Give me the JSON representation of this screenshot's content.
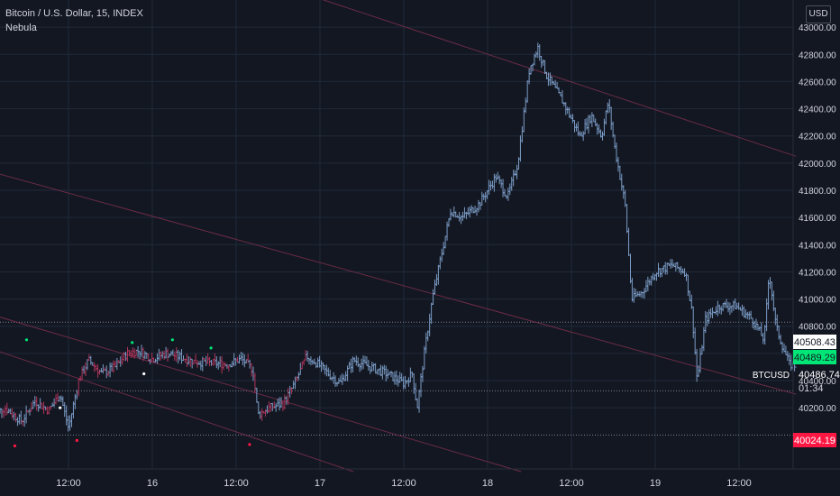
{
  "header": {
    "symbol_title": "Bitcoin / U.S. Dollar, 15, INDEX",
    "indicator_name": "Nebula",
    "currency_button": "USD"
  },
  "price_labels": {
    "last_price": "40508.43",
    "green_price": "40489.29",
    "btcusd_label": "BTCUSD",
    "btcusd_price": "40486.74",
    "countdown": "01:34",
    "red_price": "40024.19"
  },
  "colors": {
    "background": "#131722",
    "grid": "#1f2a3a",
    "price_bars": "#7b9cc6",
    "channel_line": "#7a2f4a",
    "last_price_bg": "#ffffff",
    "green_label_bg": "#00e676",
    "red_label_bg": "#ff1744",
    "axis_text": "#d1d4dc"
  },
  "chart_data": {
    "type": "ohlc",
    "ylim": [
      39750,
      43200
    ],
    "y_ticks": [
      40200,
      40400,
      40600,
      40800,
      41000,
      41200,
      41400,
      41600,
      41800,
      42000,
      42200,
      42400,
      42600,
      42800,
      43000
    ],
    "y_tick_labels": [
      "40200.00",
      "40400.00",
      "40600.00",
      "40800.00",
      "41000.00",
      "41200.00",
      "41400.00",
      "41600.00",
      "41800.00",
      "42000.00",
      "42200.00",
      "42400.00",
      "42600.00",
      "42800.00",
      "43000.00"
    ],
    "x_ticks": [
      "12:00",
      "16",
      "12:00",
      "17",
      "12:00",
      "18",
      "12:00",
      "19",
      "12:00"
    ],
    "x_tick_offsets_days": [
      0.5,
      1.0,
      1.5,
      2.0,
      2.5,
      3.0,
      3.5,
      4.0,
      4.5
    ],
    "day_span": [
      0.05,
      4.84
    ],
    "price_path": [
      [
        0.05,
        40150
      ],
      [
        0.12,
        40200
      ],
      [
        0.22,
        40100
      ],
      [
        0.3,
        40250
      ],
      [
        0.38,
        40180
      ],
      [
        0.45,
        40300
      ],
      [
        0.5,
        40050
      ],
      [
        0.56,
        40400
      ],
      [
        0.62,
        40550
      ],
      [
        0.7,
        40450
      ],
      [
        0.78,
        40500
      ],
      [
        0.85,
        40600
      ],
      [
        0.92,
        40620
      ],
      [
        1.0,
        40560
      ],
      [
        1.08,
        40600
      ],
      [
        1.15,
        40580
      ],
      [
        1.25,
        40540
      ],
      [
        1.35,
        40530
      ],
      [
        1.45,
        40520
      ],
      [
        1.53,
        40560
      ],
      [
        1.6,
        40480
      ],
      [
        1.63,
        40150
      ],
      [
        1.7,
        40200
      ],
      [
        1.78,
        40230
      ],
      [
        1.85,
        40380
      ],
      [
        1.92,
        40580
      ],
      [
        1.98,
        40530
      ],
      [
        2.05,
        40450
      ],
      [
        2.12,
        40380
      ],
      [
        2.2,
        40550
      ],
      [
        2.3,
        40500
      ],
      [
        2.4,
        40450
      ],
      [
        2.5,
        40380
      ],
      [
        2.55,
        40450
      ],
      [
        2.58,
        40200
      ],
      [
        2.62,
        40580
      ],
      [
        2.67,
        41000
      ],
      [
        2.72,
        41300
      ],
      [
        2.78,
        41650
      ],
      [
        2.85,
        41600
      ],
      [
        2.95,
        41700
      ],
      [
        3.05,
        41900
      ],
      [
        3.12,
        41750
      ],
      [
        3.18,
        42000
      ],
      [
        3.25,
        42700
      ],
      [
        3.3,
        42850
      ],
      [
        3.35,
        42650
      ],
      [
        3.45,
        42450
      ],
      [
        3.55,
        42200
      ],
      [
        3.62,
        42350
      ],
      [
        3.68,
        42200
      ],
      [
        3.72,
        42450
      ],
      [
        3.76,
        42100
      ],
      [
        3.82,
        41700
      ],
      [
        3.86,
        41000
      ],
      [
        3.92,
        41050
      ],
      [
        4.0,
        41200
      ],
      [
        4.1,
        41250
      ],
      [
        4.18,
        41200
      ],
      [
        4.22,
        40900
      ],
      [
        4.25,
        40400
      ],
      [
        4.3,
        40850
      ],
      [
        4.38,
        40950
      ],
      [
        4.48,
        40950
      ],
      [
        4.58,
        40850
      ],
      [
        4.65,
        40700
      ],
      [
        4.68,
        41200
      ],
      [
        4.72,
        40800
      ],
      [
        4.76,
        40650
      ],
      [
        4.8,
        40520
      ],
      [
        4.84,
        40508
      ]
    ],
    "channel_lines": [
      {
        "from": [
          0.0,
          41950
        ],
        "to": [
          4.84,
          40300
        ]
      },
      {
        "from": [
          0.0,
          40900
        ],
        "to": [
          3.2,
          39730
        ]
      },
      {
        "from": [
          0.0,
          40650
        ],
        "to": [
          2.2,
          39730
        ]
      },
      {
        "from": [
          1.9,
          43250
        ],
        "to": [
          4.84,
          42050
        ]
      }
    ],
    "horizontal_levels": [
      40830,
      40325,
      40000
    ],
    "signal_dots": [
      {
        "x": 0.08,
        "y": 40720,
        "color": "#00e676"
      },
      {
        "x": 0.25,
        "y": 40700,
        "color": "#00e676"
      },
      {
        "x": 0.45,
        "y": 40200,
        "color": "#ffffff"
      },
      {
        "x": 0.88,
        "y": 40680,
        "color": "#00e676"
      },
      {
        "x": 1.12,
        "y": 40700,
        "color": "#00e676"
      },
      {
        "x": 0.18,
        "y": 39920,
        "color": "#ff1744"
      },
      {
        "x": 0.55,
        "y": 39960,
        "color": "#ff1744"
      },
      {
        "x": 1.58,
        "y": 39930,
        "color": "#ff1744"
      },
      {
        "x": 0.95,
        "y": 40450,
        "color": "#ffffff"
      },
      {
        "x": 1.35,
        "y": 40640,
        "color": "#00e676"
      }
    ]
  }
}
